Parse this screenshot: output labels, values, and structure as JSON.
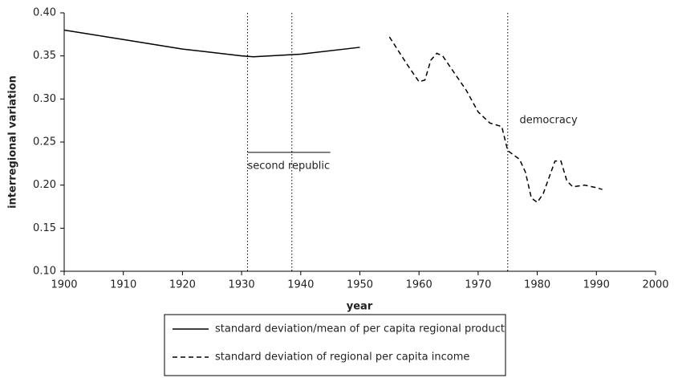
{
  "chart_data": {
    "type": "line",
    "xlabel": "year",
    "ylabel": "interregional variation",
    "xlim": [
      1900,
      2000
    ],
    "ylim": [
      0.1,
      0.4
    ],
    "xticks": [
      1900,
      1910,
      1920,
      1930,
      1940,
      1950,
      1960,
      1970,
      1980,
      1990,
      2000
    ],
    "yticks": [
      {
        "value": 0.1,
        "label": "0.10"
      },
      0.15,
      {
        "value": 0.2,
        "label": "0.20"
      },
      0.25,
      {
        "value": 0.3,
        "label": "0.30"
      },
      0.35,
      {
        "value": 0.4,
        "label": "0.40"
      }
    ],
    "series": [
      {
        "name": "standard deviation/mean of per capita regional product",
        "color": "#000000",
        "dash": "solid",
        "x": [
          1900,
          1910,
          1920,
          1930,
          1932,
          1940,
          1950
        ],
        "values": [
          0.38,
          0.369,
          0.358,
          0.35,
          0.349,
          0.352,
          0.36
        ]
      },
      {
        "name": "standard deviation of regional per capita income",
        "color": "#000000",
        "dash": "dashed",
        "x": [
          1955,
          1958,
          1960,
          1961,
          1962,
          1963,
          1964,
          1966,
          1968,
          1970,
          1972,
          1974,
          1975,
          1977,
          1978,
          1979,
          1980,
          1981,
          1983,
          1984,
          1985,
          1986,
          1988,
          1990,
          1991
        ],
        "values": [
          0.372,
          0.34,
          0.32,
          0.322,
          0.345,
          0.353,
          0.35,
          0.33,
          0.31,
          0.285,
          0.272,
          0.268,
          0.24,
          0.23,
          0.215,
          0.185,
          0.18,
          0.19,
          0.228,
          0.228,
          0.205,
          0.198,
          0.2,
          0.197,
          0.195
        ]
      }
    ],
    "vlines": [
      1931,
      1938.5,
      1975
    ],
    "annotations": [
      {
        "text": "second republic",
        "x": 1931,
        "y": 0.222,
        "span": [
          1931,
          1945
        ],
        "line_y": 0.238
      },
      {
        "text": "democracy",
        "x": 1977,
        "y": 0.275
      }
    ]
  }
}
